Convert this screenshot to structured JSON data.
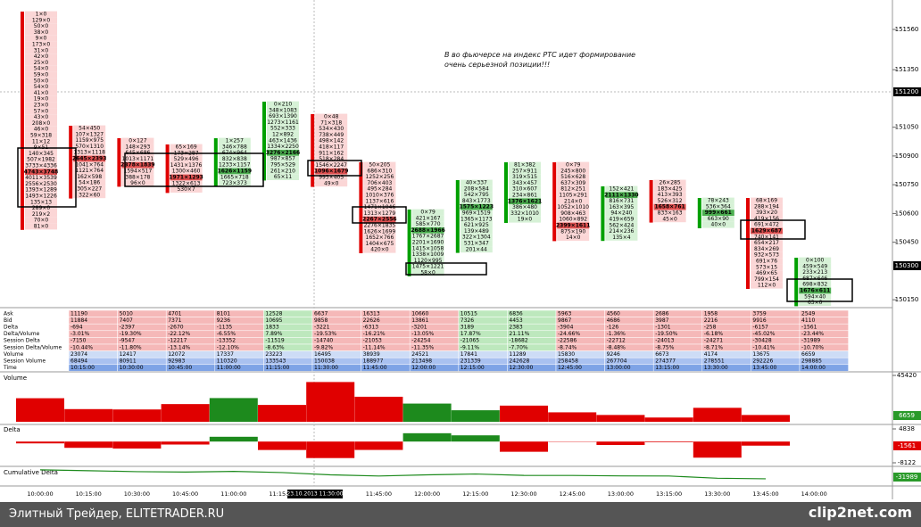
{
  "annotation": "В во фьючерсе на индекс РТС идет формирование очень серьезной позиции!!!",
  "price_axis": {
    "ticks": [
      151560,
      151350,
      151050,
      150900,
      150750,
      150600,
      150450,
      150150
    ],
    "markers": [
      "151200",
      "150300"
    ]
  },
  "footprint": [
    {
      "color": "#e00000",
      "highlight": 26,
      "cells": [
        "1×0",
        "129×0",
        "50×0",
        "38×0",
        "9×0",
        "173×0",
        "31×0",
        "42×0",
        "25×0",
        "54×0",
        "59×0",
        "50×0",
        "54×0",
        "41×0",
        "19×0",
        "23×0",
        "57×0",
        "43×0",
        "208×0",
        "46×0",
        "59×318",
        "11×12",
        "9×51",
        "140×345",
        "507×1982",
        "3733×4336",
        "4743×3748",
        "4011×3539",
        "2556×2530",
        "1393×1289",
        "1493×1226",
        "135×13",
        "289×0",
        "219×2",
        "70×0",
        "81×0"
      ]
    },
    {
      "color": "#e00000",
      "highlight": 5,
      "cells": [
        "54×450",
        "107×1327",
        "1159×975",
        "570×1310",
        "1313×1118",
        "2645×2393",
        "1041×764",
        "1121×764",
        "162×598",
        "54×186",
        "305×227",
        "322×60"
      ]
    },
    {
      "color": "#e00000",
      "highlight": 4,
      "cells": [
        "0×127",
        "148×293",
        "645×686",
        "1013×1171",
        "2378×1839",
        "1594×517",
        "388×178",
        "96×0"
      ]
    },
    {
      "color": "#e00000",
      "highlight": 5,
      "cells": [
        "65×169",
        "173×287",
        "529×496",
        "1431×1376",
        "1300×460",
        "1971×1293",
        "1322×613",
        "530×7"
      ]
    },
    {
      "color": "#00a000",
      "highlight": 5,
      "cells": [
        "1×257",
        "346×788",
        "674×964",
        "832×838",
        "1233×1157",
        "1626×1159",
        "1665×718",
        "723×373"
      ]
    },
    {
      "color": "#00a000",
      "highlight": 8,
      "cells": [
        "0×210",
        "348×1083",
        "693×1390",
        "1273×1161",
        "552×333",
        "12×892",
        "463×1436",
        "1334×2250",
        "3276×2166",
        "987×857",
        "795×529",
        "261×210",
        "65×11"
      ]
    },
    {
      "color": "#e00000",
      "highlight": 9,
      "cells": [
        "0×48",
        "71×318",
        "534×430",
        "738×449",
        "498×142",
        "418×117",
        "911×162",
        "518×284",
        "1546×2247",
        "1096×1679",
        "995×405",
        "49×0"
      ]
    },
    {
      "color": "#e00000",
      "highlight": 9,
      "cells": [
        "50×205",
        "686×310",
        "1252×256",
        "706×403",
        "495×284",
        "1010×376",
        "1137×616",
        "1471×1046",
        "1313×1279",
        "2267×2556",
        "2276×1835",
        "1626×1699",
        "1652×766",
        "1404×675",
        "420×0"
      ]
    },
    {
      "color": "#00a000",
      "highlight": 3,
      "cells": [
        "0×79",
        "421×167",
        "585×770",
        "2688×1966",
        "1767×2687",
        "2201×1690",
        "1415×1058",
        "1338×1009",
        "1120×995",
        "1475×1221",
        "58×0"
      ]
    },
    {
      "color": "#00a000",
      "highlight": 4,
      "cells": [
        "40×337",
        "208×584",
        "542×795",
        "843×1773",
        "1575×1223",
        "969×1519",
        "1365×1173",
        "621×925",
        "139×489",
        "322×1304",
        "531×347",
        "201×44"
      ]
    },
    {
      "color": "#00a000",
      "highlight": 6,
      "cells": [
        "81×382",
        "257×911",
        "319×515",
        "343×457",
        "310×607",
        "234×861",
        "1376×1621",
        "386×480",
        "332×1010",
        "19×0"
      ]
    },
    {
      "color": "#e00000",
      "highlight": 10,
      "cells": [
        "0×79",
        "245×800",
        "516×628",
        "637×309",
        "812×251",
        "1105×291",
        "214×0",
        "1052×1010",
        "908×463",
        "1060×892",
        "2399×1611",
        "875×190",
        "14×0"
      ]
    },
    {
      "color": "#00a000",
      "highlight": 1,
      "cells": [
        "152×421",
        "2111×1330",
        "816×731",
        "163×395",
        "94×240",
        "419×659",
        "562×424",
        "214×236",
        "135×4"
      ]
    },
    {
      "color": "#e00000",
      "highlight": 4,
      "cells": [
        "26×285",
        "183×425",
        "413×393",
        "526×312",
        "1658×761",
        "833×163",
        "45×0"
      ]
    },
    {
      "color": "#00a000",
      "highlight": 2,
      "cells": [
        "78×243",
        "536×364",
        "999×661",
        "663×90",
        "40×0"
      ]
    },
    {
      "color": "#e00000",
      "highlight": 5,
      "cells": [
        "68×169",
        "288×194",
        "393×20",
        "419×156",
        "691×472",
        "1629×687",
        "740×141",
        "654×217",
        "834×269",
        "932×573",
        "691×76",
        "573×15",
        "469×65",
        "799×154",
        "112×0"
      ]
    },
    {
      "color": "#00a000",
      "highlight": 5,
      "cells": [
        "0×100",
        "459×549",
        "233×213",
        "687×646",
        "698×832",
        "1676×611",
        "594×40",
        "63×0"
      ]
    }
  ],
  "stats": {
    "row_labels": [
      "Ask",
      "Bid",
      "Delta",
      "Delta/Volume",
      "Session Delta",
      "Session Delta/Volume",
      "Volume",
      "Session Volume",
      "Time"
    ],
    "colors": {
      "negative": "#f5b8b8",
      "positive": "#bde8bd",
      "volume": "#cddcf6",
      "session_volume": "#a9c1f0",
      "time": "#7ea3e6"
    },
    "rows": [
      [
        11190,
        5010,
        4701,
        8101,
        12528,
        6637,
        16313,
        10660,
        10515,
        6836,
        5963,
        4560,
        2686,
        1958,
        3759,
        2549
      ],
      [
        11884,
        7407,
        7371,
        9236,
        10695,
        9858,
        22626,
        13861,
        7326,
        4453,
        9867,
        4686,
        3987,
        2216,
        9916,
        4110
      ],
      [
        -694,
        -2397,
        -2670,
        -1135,
        1833,
        -3221,
        -6313,
        -3201,
        3189,
        2383,
        -3904,
        -126,
        -1301,
        -258,
        -6157,
        -1561
      ],
      [
        "-3.01%",
        "-19.30%",
        "-22.12%",
        "-6.55%",
        "7.89%",
        "-19.53%",
        "-16.21%",
        "-13.05%",
        "17.87%",
        "21.11%",
        "-24.66%",
        "-1.36%",
        "-19.50%",
        "-6.18%",
        "-45.02%",
        "-23.44%"
      ],
      [
        -7150,
        -9547,
        -12217,
        -13352,
        -11519,
        -14740,
        -21053,
        -24254,
        -21065,
        -18682,
        -22586,
        -22712,
        -24013,
        -24271,
        -30428,
        -31989
      ],
      [
        "-10.44%",
        "-11.80%",
        "-13.14%",
        "-12.10%",
        "-8.63%",
        "-9.82%",
        "-11.14%",
        "-11.35%",
        "-9.11%",
        "-7.70%",
        "-8.74%",
        "-8.48%",
        "-8.75%",
        "-8.71%",
        "-10.41%",
        "-10.70%"
      ],
      [
        23074,
        12417,
        12072,
        17337,
        23223,
        16495,
        38939,
        24521,
        17841,
        11289,
        15830,
        9246,
        6673,
        4174,
        13675,
        6659
      ],
      [
        68494,
        80911,
        92983,
        110320,
        133543,
        150038,
        188977,
        213498,
        231339,
        242628,
        258458,
        267704,
        274377,
        278551,
        292226,
        298885
      ],
      [
        "10:15:00",
        "10:30:00",
        "10:45:00",
        "11:00:00",
        "11:15:00",
        "11:30:00",
        "11:45:00",
        "12:00:00",
        "12:15:00",
        "12:30:00",
        "12:45:00",
        "13:00:00",
        "13:15:00",
        "13:30:00",
        "13:45:00",
        "14:00:00"
      ]
    ]
  },
  "volume_pane": {
    "label": "Volume",
    "ylim": [
      0,
      45420
    ],
    "yticks": [
      45420
    ],
    "marker": "6659"
  },
  "delta_pane": {
    "label": "Delta",
    "ylim": [
      -9146,
      6203
    ],
    "yticks": [
      4838,
      -8122
    ],
    "marker": "-1561"
  },
  "cum_delta_pane": {
    "label": "Cumulative Delta",
    "ylim": [
      -52000,
      0
    ],
    "marker": "-31989"
  },
  "time_axis": {
    "labels": [
      "10:00:00",
      "10:15:00",
      "10:30:00",
      "10:45:00",
      "11:00:00",
      "11:15:00",
      null,
      "11:45:00",
      "12:00:00",
      "12:15:00",
      "12:30:00",
      "12:45:00",
      "13:00:00",
      "13:15:00",
      "13:30:00",
      "13:45:00",
      "14:00:00"
    ],
    "crosshair": "23.10.2013 11:30:00"
  },
  "footer": {
    "source": "Элитный Трейдер, ELITETRADER.RU",
    "watermark": "clip2net.com"
  }
}
